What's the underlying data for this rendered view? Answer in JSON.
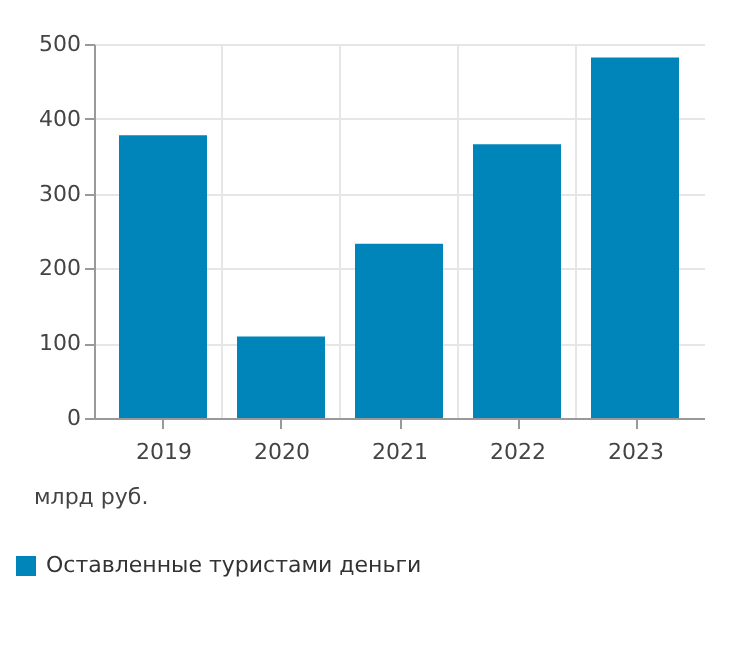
{
  "chart_data": {
    "type": "bar",
    "ylabel": "млрд руб.",
    "categories": [
      "2019",
      "2020",
      "2021",
      "2022",
      "2023"
    ],
    "series": [
      {
        "name": "Оставленные туристами деньги",
        "color": "#0085bb",
        "values": [
          378,
          109,
          233,
          366,
          482
        ]
      }
    ],
    "ylim": [
      0,
      500
    ],
    "yticks": [
      0,
      100,
      200,
      300,
      400,
      500
    ],
    "grid": true,
    "legend": "bottom"
  }
}
